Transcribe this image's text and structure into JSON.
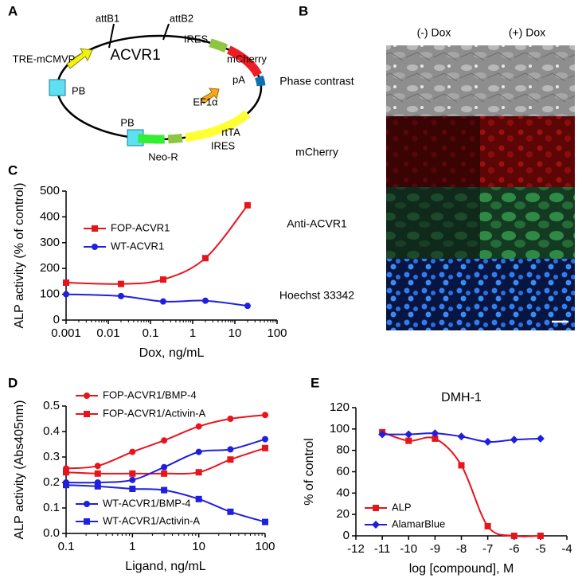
{
  "panel_labels": [
    "A",
    "B",
    "C",
    "D",
    "E"
  ],
  "plasmid": {
    "labels": [
      "attB1",
      "attB2",
      "TRE-mCMVP",
      "ACVR1",
      "IRES",
      "mCherry",
      "pA",
      "PB",
      "EF1α",
      "PB",
      "rtTA",
      "IRES",
      "Neo-R"
    ]
  },
  "imaging": {
    "columns": [
      "(-) Dox",
      "(+) Dox"
    ],
    "rows": [
      "Phase contrast",
      "mCherry",
      "Anti-ACVR1",
      "Hoechst 33342"
    ]
  },
  "chart_data": [
    {
      "type": "line",
      "x_label": "Dox, ng/mL",
      "y_label": "ALP activity (% of control)",
      "xscale": "log",
      "xlim": [
        0.001,
        100
      ],
      "xticks": [
        0.001,
        0.01,
        0.1,
        1,
        10,
        100
      ],
      "ylim": [
        0,
        500
      ],
      "yticks": [
        0,
        100,
        200,
        300,
        400,
        500
      ],
      "x": [
        0.001,
        0.02,
        0.2,
        2,
        20
      ],
      "series": [
        {
          "name": "FOP-ACVR1",
          "color": "#e8141b",
          "marker": "square",
          "values": [
            145,
            140,
            157,
            240,
            445
          ]
        },
        {
          "name": "WT-ACVR1",
          "color": "#1f1fe0",
          "marker": "circle",
          "values": [
            100,
            93,
            72,
            75,
            55
          ]
        }
      ]
    },
    {
      "type": "line",
      "x_label": "Ligand, ng/mL",
      "y_label": "ALP activity (Abs405nm)",
      "xscale": "log",
      "xlim": [
        0.1,
        100
      ],
      "xticks": [
        0.1,
        1,
        10,
        100
      ],
      "ylim": [
        0,
        0.5
      ],
      "yticks": [
        {
          "value": 0,
          "label": "0.0"
        },
        0.1,
        0.2,
        0.3,
        0.4,
        0.5
      ],
      "x": [
        0.1,
        0.3,
        1,
        3,
        10,
        30,
        100
      ],
      "series": [
        {
          "name": "FOP-ACVR1/BMP-4",
          "color": "#e8141b",
          "marker": "circle",
          "values": [
            0.255,
            0.265,
            0.32,
            0.365,
            0.42,
            0.45,
            0.465
          ]
        },
        {
          "name": "FOP-ACVR1/Activin-A",
          "color": "#e8141b",
          "marker": "square",
          "values": [
            0.24,
            0.235,
            0.235,
            0.235,
            0.24,
            0.29,
            0.335
          ]
        },
        {
          "name": "WT-ACVR1/BMP-4",
          "color": "#1f1fe0",
          "marker": "circle",
          "values": [
            0.2,
            0.2,
            0.21,
            0.26,
            0.32,
            0.33,
            0.37
          ]
        },
        {
          "name": "WT-ACVR1/Activin-A",
          "color": "#1f1fe0",
          "marker": "square",
          "values": [
            0.19,
            0.185,
            0.175,
            0.17,
            0.135,
            0.085,
            0.045
          ]
        }
      ]
    },
    {
      "type": "line",
      "title": "DMH-1",
      "x_label": "log [compound], M",
      "y_label": "% of control",
      "xscale": "linear",
      "xlim": [
        -12,
        -4
      ],
      "xticks": [
        -12,
        -11,
        -10,
        -9,
        -8,
        -7,
        -6,
        -5,
        -4
      ],
      "ylim": [
        0,
        120
      ],
      "yticks": [
        0,
        20,
        40,
        60,
        80,
        100,
        120
      ],
      "x": [
        -11,
        -10,
        -9,
        -8,
        -7,
        -6,
        -5
      ],
      "series": [
        {
          "name": "ALP",
          "color": "#e8141b",
          "marker": "square",
          "values": [
            97,
            89,
            91,
            66,
            9,
            0,
            0
          ]
        },
        {
          "name": "AlamarBlue",
          "color": "#1f1fe0",
          "marker": "diamond",
          "values": [
            95,
            95,
            96,
            93,
            88,
            90,
            91
          ]
        }
      ]
    }
  ]
}
